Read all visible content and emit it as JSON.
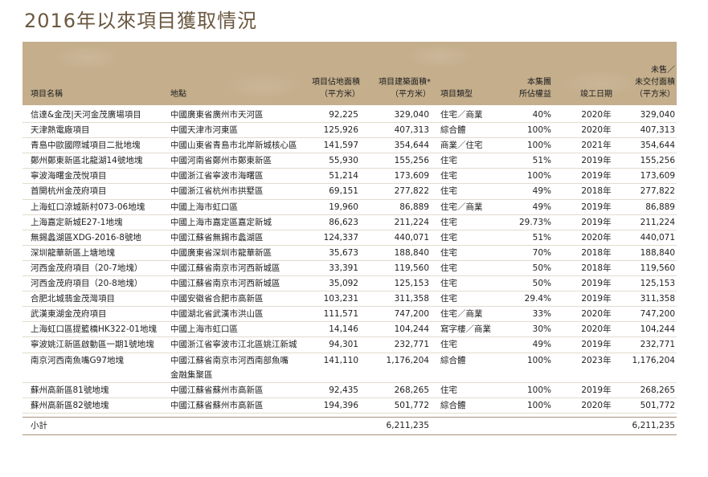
{
  "title": "2016年以來項目獲取情況",
  "headers": {
    "name": "項目名稱",
    "location": "地點",
    "site_area": [
      "項目佔地面積",
      "（平方米）"
    ],
    "gfa": [
      "項目建築面積*",
      "（平方米）"
    ],
    "type": "項目類型",
    "share": [
      "本集團",
      "所佔權益"
    ],
    "completion": "竣工日期",
    "unsold": [
      "未售／",
      "未交付面積",
      "（平方米）"
    ]
  },
  "rows": [
    {
      "name": "信達&金茂|天河金茂廣場項目",
      "location": "中國廣東省廣州市天河區",
      "site": "92,225",
      "gfa": "329,040",
      "type": "住宅／商業",
      "share": "40%",
      "year": "2020年",
      "unsold": "329,040"
    },
    {
      "name": "天津熱電廠項目",
      "location": "中國天津市河東區",
      "site": "125,926",
      "gfa": "407,313",
      "type": "綜合體",
      "share": "100%",
      "year": "2020年",
      "unsold": "407,313"
    },
    {
      "name": "青島中歐國際城項目二批地塊",
      "location": "中國山東省青島市北岸新城核心區",
      "site": "141,597",
      "gfa": "354,644",
      "type": "商業／住宅",
      "share": "100%",
      "year": "2021年",
      "unsold": "354,644"
    },
    {
      "name": "鄭州鄭東新區北龍湖14號地塊",
      "location": "中國河南省鄭州市鄭東新區",
      "site": "55,930",
      "gfa": "155,256",
      "type": "住宅",
      "share": "51%",
      "year": "2019年",
      "unsold": "155,256"
    },
    {
      "name": "寧波海曙金茂悅項目",
      "location": "中國浙江省寧波市海曙區",
      "site": "51,214",
      "gfa": "173,609",
      "type": "住宅",
      "share": "100%",
      "year": "2019年",
      "unsold": "173,609"
    },
    {
      "name": "首開杭州金茂府項目",
      "location": "中國浙江省杭州市拱墅區",
      "site": "69,151",
      "gfa": "277,822",
      "type": "住宅",
      "share": "49%",
      "year": "2018年",
      "unsold": "277,822"
    },
    {
      "name": "上海虹口涼城新村073-06地塊",
      "location": "中國上海市虹口區",
      "site": "19,960",
      "gfa": "86,889",
      "type": "住宅／商業",
      "share": "49%",
      "year": "2019年",
      "unsold": "86,889"
    },
    {
      "name": "上海嘉定新城E27-1地塊",
      "location": "中國上海市嘉定區嘉定新城",
      "site": "86,623",
      "gfa": "211,224",
      "type": "住宅",
      "share": "29.73%",
      "year": "2019年",
      "unsold": "211,224"
    },
    {
      "name": "無錫蠡湖區XDG-2016-8號地",
      "location": "中國江蘇省無錫市蠡湖區",
      "site": "124,337",
      "gfa": "440,071",
      "type": "住宅",
      "share": "51%",
      "year": "2020年",
      "unsold": "440,071"
    },
    {
      "name": "深圳龍華新區上塘地塊",
      "location": "中國廣東省深圳市龍華新區",
      "site": "35,673",
      "gfa": "188,840",
      "type": "住宅",
      "share": "70%",
      "year": "2018年",
      "unsold": "188,840"
    },
    {
      "name": "河西金茂府項目（20-7地塊）",
      "location": "中國江蘇省南京市河西新城區",
      "site": "33,391",
      "gfa": "119,560",
      "type": "住宅",
      "share": "50%",
      "year": "2018年",
      "unsold": "119,560"
    },
    {
      "name": "河西金茂府項目（20-8地塊）",
      "location": "中國江蘇省南京市河西新城區",
      "site": "35,092",
      "gfa": "125,153",
      "type": "住宅",
      "share": "50%",
      "year": "2019年",
      "unsold": "125,153"
    },
    {
      "name": "合肥北城翡金茂灣項目",
      "location": "中國安徽省合肥市高新區",
      "site": "103,231",
      "gfa": "311,358",
      "type": "住宅",
      "share": "29.4%",
      "year": "2019年",
      "unsold": "311,358"
    },
    {
      "name": "武漢東湖金茂府項目",
      "location": "中國湖北省武漢市洪山區",
      "site": "111,571",
      "gfa": "747,200",
      "type": "住宅／商業",
      "share": "33%",
      "year": "2020年",
      "unsold": "747,200"
    },
    {
      "name": "上海虹口區提籃橋HK322-01地塊",
      "location": "中國上海市虹口區",
      "site": "14,146",
      "gfa": "104,244",
      "type": "寫字樓／商業",
      "share": "30%",
      "year": "2020年",
      "unsold": "104,244"
    },
    {
      "name": "寧波姚江新區啟動區一期1號地塊",
      "location": "中國浙江省寧波市江北區姚江新城",
      "site": "94,301",
      "gfa": "232,771",
      "type": "住宅",
      "share": "49%",
      "year": "2019年",
      "unsold": "232,771"
    },
    {
      "name": "南京河西南魚嘴G97地塊",
      "location": "中國江蘇省南京市河西南部魚嘴",
      "location2": "金融集聚區",
      "site": "141,110",
      "gfa": "1,176,204",
      "type": "綜合體",
      "share": "100%",
      "year": "2023年",
      "unsold": "1,176,204"
    },
    {
      "name": "蘇州高新區81號地塊",
      "location": "中國江蘇省蘇州市高新區",
      "site": "92,435",
      "gfa": "268,265",
      "type": "住宅",
      "share": "100%",
      "year": "2019年",
      "unsold": "268,265"
    },
    {
      "name": "蘇州高新區82號地塊",
      "location": "中國江蘇省蘇州市高新區",
      "site": "194,396",
      "gfa": "501,772",
      "type": "綜合體",
      "share": "100%",
      "year": "2020年",
      "unsold": "501,772"
    }
  ],
  "total": {
    "label": "小計",
    "gfa": "6,211,235",
    "unsold": "6,211,235"
  }
}
